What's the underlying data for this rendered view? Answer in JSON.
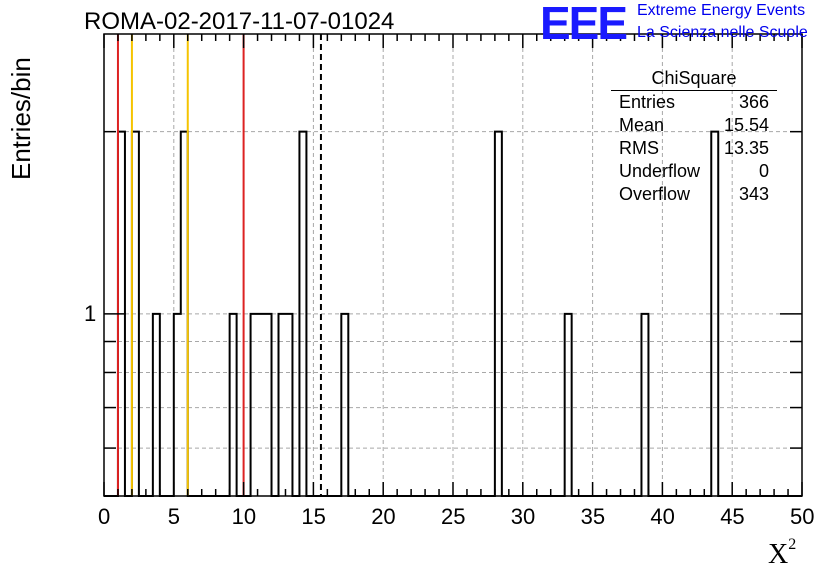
{
  "chart_data": {
    "type": "bar",
    "title": "ROMA-02-2017-11-07-01024",
    "xlabel": "X",
    "xlabel_superscript": "2",
    "ylabel": "Entries/bin",
    "xlim": [
      0,
      50
    ],
    "ylim": [
      0.5,
      2.9
    ],
    "y_scale": "log",
    "grid": true,
    "x_ticks": [
      "0",
      "5",
      "10",
      "15",
      "20",
      "25",
      "30",
      "35",
      "40",
      "45",
      "50"
    ],
    "y_ticks": [
      "1"
    ],
    "bin_width": 0.5,
    "bins": [
      {
        "x": 1.0,
        "value": 2
      },
      {
        "x": 2.0,
        "value": 2
      },
      {
        "x": 3.5,
        "value": 1
      },
      {
        "x": 5.0,
        "value": 1
      },
      {
        "x": 5.5,
        "value": 2
      },
      {
        "x": 9.0,
        "value": 1
      },
      {
        "x": 10.5,
        "value": 1
      },
      {
        "x": 11.0,
        "value": 1
      },
      {
        "x": 11.5,
        "value": 1
      },
      {
        "x": 12.5,
        "value": 1
      },
      {
        "x": 13.0,
        "value": 1
      },
      {
        "x": 14.0,
        "value": 2
      },
      {
        "x": 17.0,
        "value": 1
      },
      {
        "x": 28.0,
        "value": 2
      },
      {
        "x": 33.0,
        "value": 1
      },
      {
        "x": 38.5,
        "value": 1
      },
      {
        "x": 43.5,
        "value": 2
      }
    ],
    "vertical_lines": [
      {
        "x": 1.0,
        "color": "#dd2222",
        "style": "solid"
      },
      {
        "x": 2.0,
        "color": "#f5c400",
        "style": "solid"
      },
      {
        "x": 6.0,
        "color": "#f5c400",
        "style": "solid"
      },
      {
        "x": 10.0,
        "color": "#dd2222",
        "style": "solid"
      },
      {
        "x": 15.54,
        "color": "#000000",
        "style": "dashed"
      }
    ],
    "stats_box": {
      "title": "ChiSquare",
      "rows": [
        {
          "label": "Entries",
          "value": "366"
        },
        {
          "label": "Mean",
          "value": "15.54"
        },
        {
          "label": "RMS",
          "value": "13.35"
        },
        {
          "label": "Underflow",
          "value": "0"
        },
        {
          "label": "Overflow",
          "value": "343"
        }
      ]
    }
  },
  "logo": {
    "mark": "EEE",
    "line1": "Extreme Energy Events",
    "line2": "La Scienza nelle Scuole",
    "color": "#1a1aff"
  }
}
